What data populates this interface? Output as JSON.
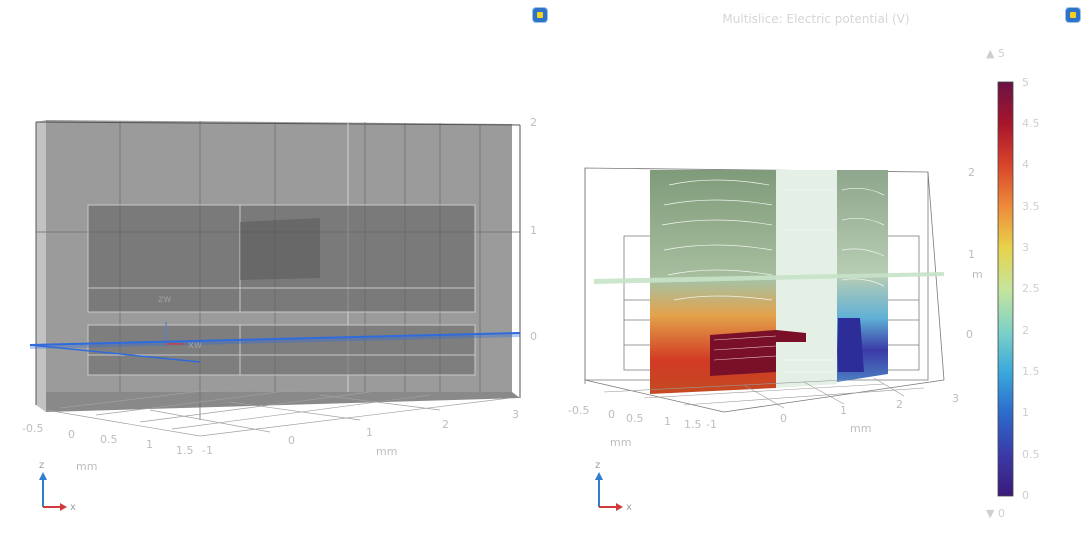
{
  "left_view": {
    "axis_x_ticks": [
      "-0.5",
      "0",
      "0.5",
      "1",
      "1.5"
    ],
    "axis_y_ticks": [
      "-1",
      "0",
      "1",
      "2",
      "3"
    ],
    "axis_z_ticks": [
      "0",
      "1",
      "2"
    ],
    "axis_unit_x": "mm",
    "axis_unit_y": "mm",
    "plane_labels": {
      "zw": "zw",
      "xw": "xw"
    },
    "triad": {
      "z": "z",
      "x": "x"
    },
    "colors": {
      "block": "#7a7a7a",
      "plane": "#2f6bdc"
    }
  },
  "right_view": {
    "title": "Multislice: Electric potential (V)",
    "axis_x_ticks": [
      "-0.5",
      "0",
      "0.5",
      "1",
      "1.5"
    ],
    "axis_y_ticks": [
      "-1",
      "0",
      "1",
      "2",
      "3"
    ],
    "axis_z_ticks": [
      "0",
      "1",
      "2"
    ],
    "axis_unit_x": "mm",
    "axis_unit_y": "mm",
    "axis_unit_z": "m",
    "triad": {
      "z": "z",
      "x": "x"
    },
    "colorbar": {
      "max_marker": "▲ 5",
      "min_marker": "▼ 0",
      "ticks": [
        "5",
        "4.5",
        "4",
        "3.5",
        "3",
        "2.5",
        "2",
        "1.5",
        "1",
        "0.5",
        "0"
      ],
      "colormap_top": "#6a1244",
      "colormap_bottom": "#3b1a7a"
    }
  }
}
